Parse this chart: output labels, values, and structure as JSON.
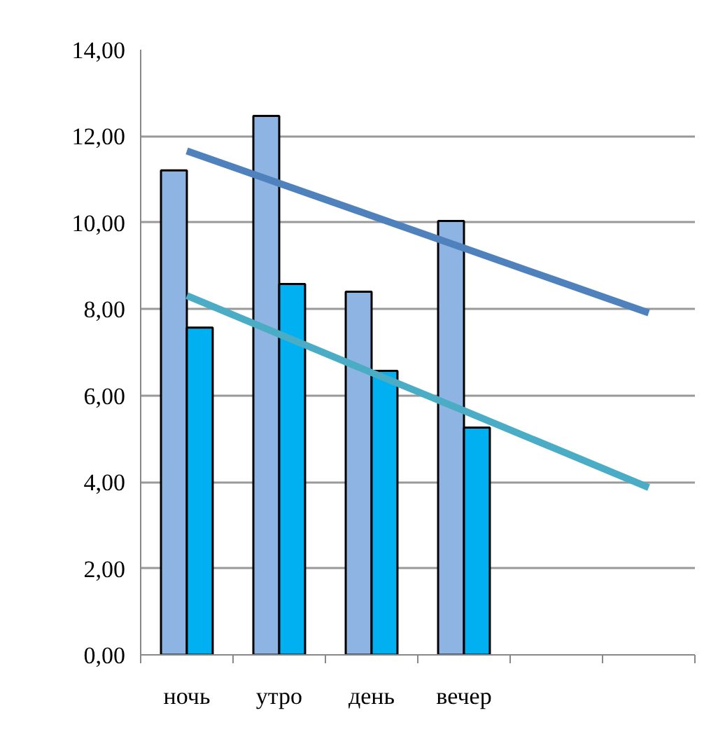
{
  "chart_data": {
    "type": "bar",
    "categories": [
      "ночь",
      "утро",
      "день",
      "вечер",
      null,
      null
    ],
    "series": [
      {
        "color": "#8eb4e3",
        "values": [
          11.21,
          12.47,
          8.4,
          10.04,
          null,
          null
        ]
      },
      {
        "color": "#00b0f0",
        "values": [
          7.57,
          8.58,
          6.57,
          5.26,
          null,
          null
        ]
      },
      {
        "type": "line",
        "color": "#4f81bd",
        "values": [
          11.66,
          10.91,
          10.16,
          9.41,
          8.66,
          7.91
        ]
      },
      {
        "type": "line",
        "color": "#4bacc6",
        "values": [
          8.31,
          7.42,
          6.53,
          5.65,
          4.76,
          3.87
        ]
      }
    ],
    "ylim": [
      0,
      14
    ],
    "yticks": [
      {
        "value": 0,
        "label": "0,00"
      },
      {
        "value": 2,
        "label": "2,00"
      },
      {
        "value": 4,
        "label": "4,00"
      },
      {
        "value": 6,
        "label": "6,00"
      },
      {
        "value": 8,
        "label": "8,00"
      },
      {
        "value": 10,
        "label": "10,00"
      },
      {
        "value": 12,
        "label": "12,00"
      },
      {
        "value": 14,
        "label": "14,00"
      }
    ],
    "grid": "y",
    "line_style": "solid"
  }
}
